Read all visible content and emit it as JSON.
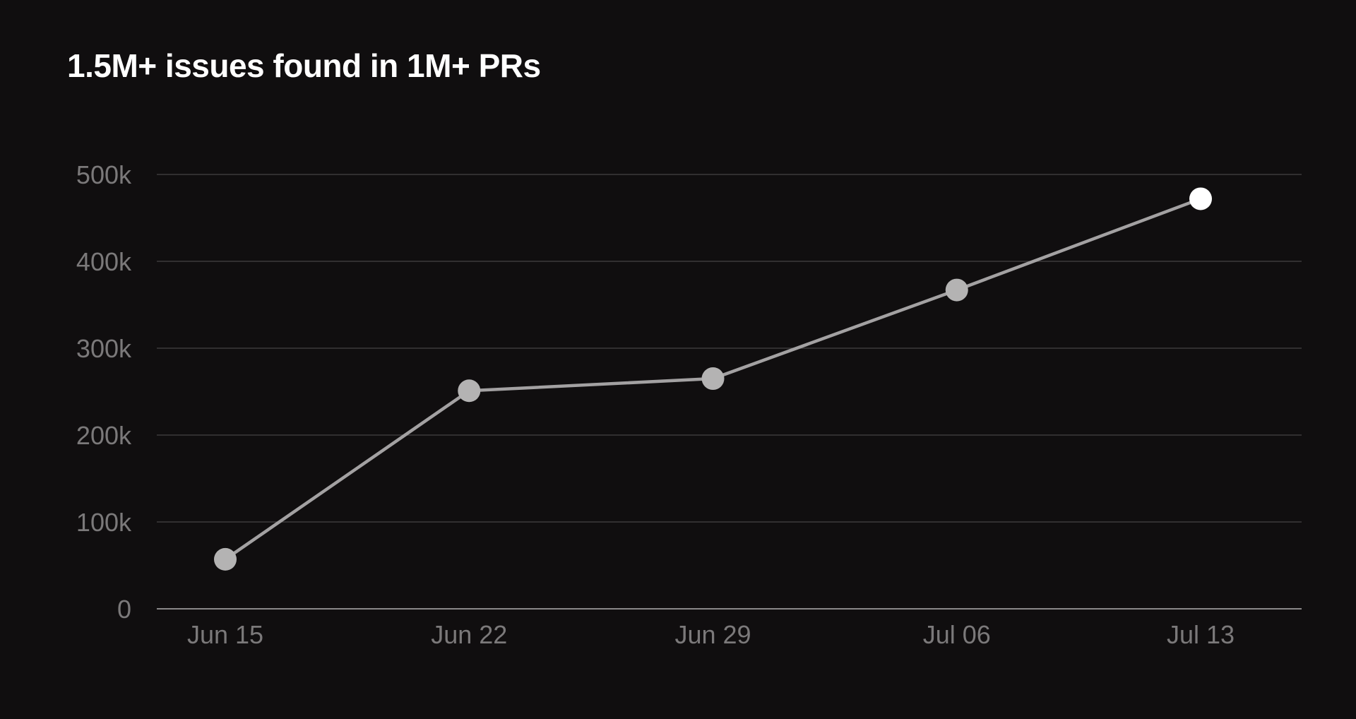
{
  "chart_data": {
    "type": "line",
    "title": "1.5M+ issues found in 1M+ PRs",
    "xlabel": "",
    "ylabel": "",
    "categories": [
      "Jun 15",
      "Jun 22",
      "Jun 29",
      "Jul 06",
      "Jul 13"
    ],
    "series": [
      {
        "values": [
          57000,
          251000,
          265000,
          367000,
          472000
        ]
      }
    ],
    "ylim": [
      0,
      500000
    ],
    "yticks": [
      0,
      100000,
      200000,
      300000,
      400000,
      500000
    ],
    "ytick_labels": [
      "0",
      "100k",
      "200k",
      "300k",
      "400k",
      "500k"
    ],
    "grid": true,
    "legend": "none",
    "colors": {
      "background": "#100e0f",
      "title": "#ffffff",
      "tick_label": "#7b797a",
      "gridline": "#3c3a3b",
      "axis": "#8a8889",
      "line": "#a3a1a2",
      "marker": "#b4b3b3",
      "highlight_marker": "#ffffff"
    }
  }
}
